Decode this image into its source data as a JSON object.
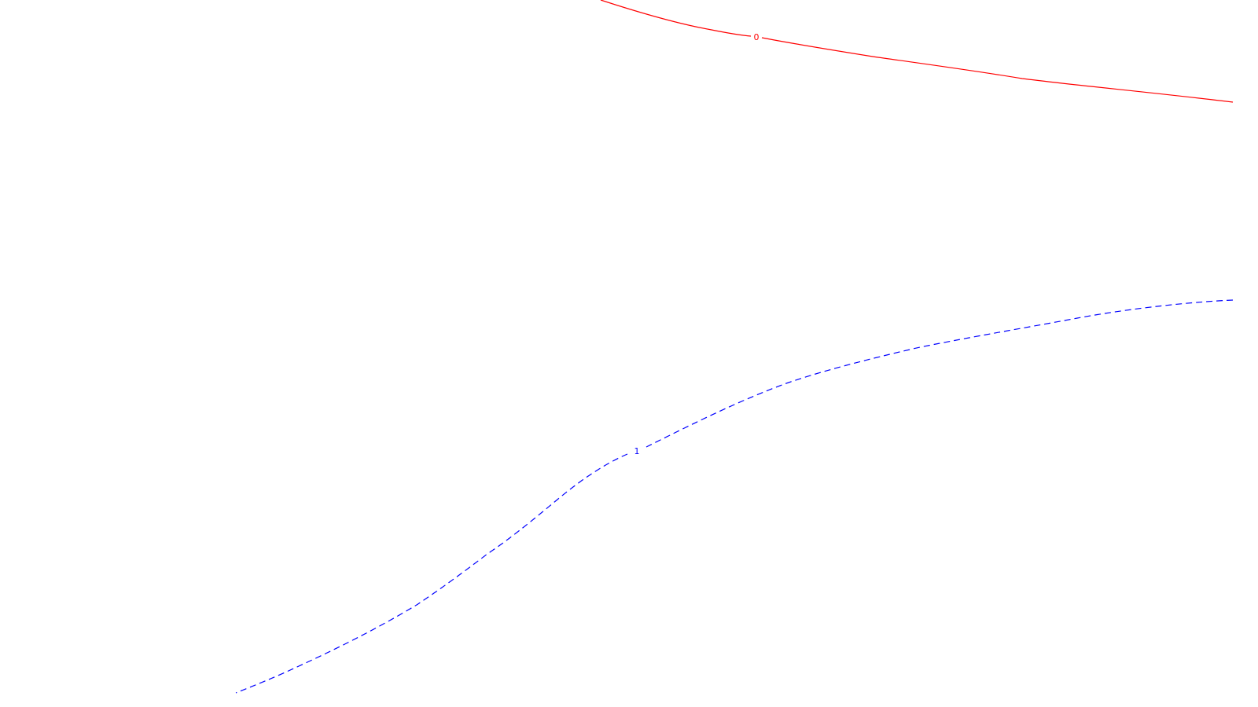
{
  "contours": [
    {
      "id": "contour-0",
      "label": "0",
      "color": "#ff0000",
      "style": "solid"
    },
    {
      "id": "contour-1",
      "label": "1",
      "color": "#0000ff",
      "style": "dashed"
    }
  ]
}
